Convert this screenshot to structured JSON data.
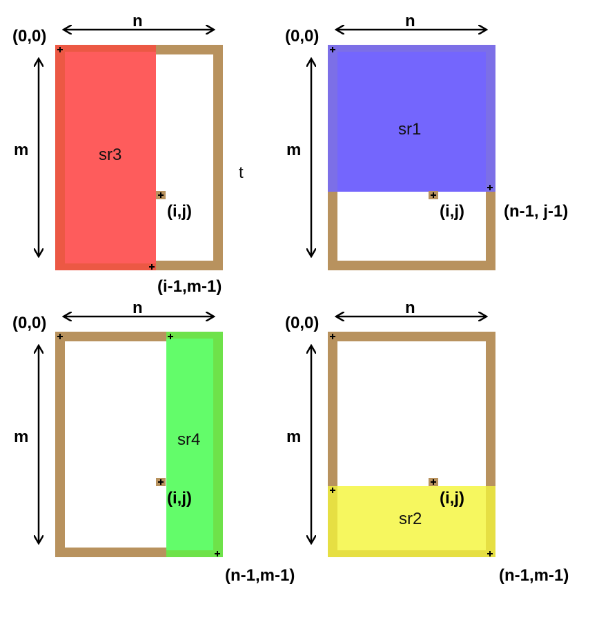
{
  "colors": {
    "frame": "#b8925e",
    "sr1": "#7c6fe7",
    "sr2": "#f6f75f",
    "sr3": "#fe5c5c",
    "sr4": "#63fc6a"
  },
  "panels": [
    {
      "origin": "(0,0)",
      "width_label": "n",
      "height_label": "m",
      "region_label": "sr3",
      "ij_label": "(i,j)",
      "corner_label": "(i-1,m-1)",
      "extra_label": "t"
    },
    {
      "origin": "(0,0)",
      "width_label": "n",
      "height_label": "m",
      "region_label": "sr1",
      "ij_label": "(i,j)",
      "corner_label": "(n-1, j-1)"
    },
    {
      "origin": "(0,0)",
      "width_label": "n",
      "height_label": "m",
      "region_label": "sr4",
      "ij_label": "(i,j)",
      "corner_label": "(n-1,m-1)"
    },
    {
      "origin": "(0,0)",
      "width_label": "n",
      "height_label": "m",
      "region_label": "sr2",
      "ij_label": "(i,j)",
      "corner_label": "(n-1,m-1)"
    }
  ]
}
